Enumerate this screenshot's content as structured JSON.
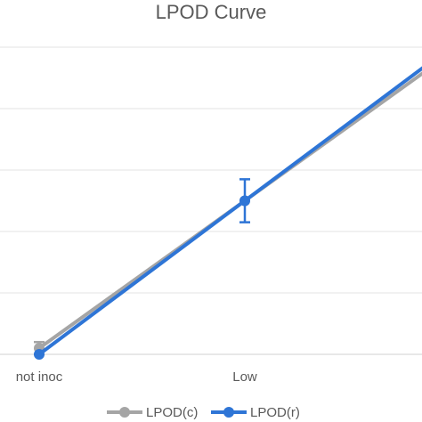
{
  "chart_data": {
    "type": "line",
    "title": "LPOD Curve",
    "categories": [
      "not inoc",
      "Low"
    ],
    "ylim": [
      0,
      1
    ],
    "y_tick_count": 6,
    "grid": true,
    "legend_position": "bottom",
    "series": [
      {
        "name": "LPOD(c)",
        "color": "#a5a5a5",
        "values": [
          0.02,
          0.5
        ],
        "error": [
          0.02,
          null
        ]
      },
      {
        "name": "LPOD(r)",
        "color": "#2e75d6",
        "values": [
          0.0,
          0.5
        ],
        "error": [
          null,
          0.07
        ]
      }
    ]
  }
}
